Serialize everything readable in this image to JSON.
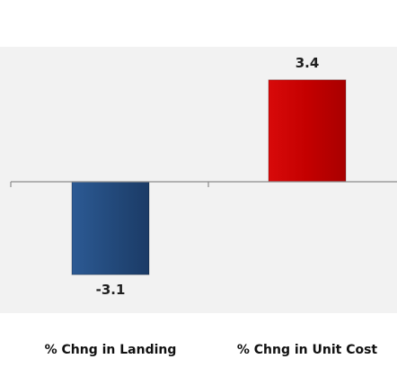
{
  "chart_data": {
    "type": "bar",
    "categories": [
      "% Chng in Landing",
      "% Chng in Unit Cost"
    ],
    "values": [
      -3.1,
      3.4
    ],
    "bar_colors": [
      "#234a7c",
      "#c40000"
    ],
    "data_labels": [
      "-3.1",
      "3.4"
    ],
    "title": "",
    "xlabel": "",
    "ylabel": "",
    "ylim": [
      -4.0,
      4.0
    ],
    "grid": false,
    "legend": "none",
    "plot_background": "#f2f2f2"
  }
}
